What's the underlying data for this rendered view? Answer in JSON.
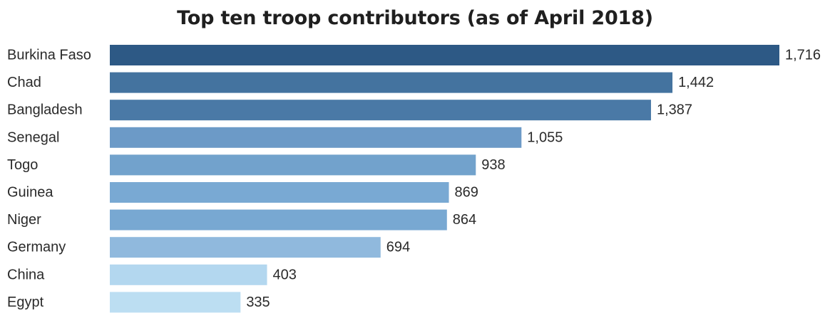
{
  "chart_data": {
    "type": "bar",
    "orientation": "horizontal",
    "title": "Top ten troop contributors (as of April 2018)",
    "xlabel": "",
    "ylabel": "",
    "categories": [
      "Burkina Faso",
      "Chad",
      "Bangladesh",
      "Senegal",
      "Togo",
      "Guinea",
      "Niger",
      "Germany",
      "China",
      "Egypt"
    ],
    "values": [
      1716,
      1442,
      1387,
      1055,
      938,
      869,
      864,
      694,
      403,
      335
    ],
    "value_labels": [
      "1,716",
      "1,442",
      "1,387",
      "1,055",
      "938",
      "869",
      "864",
      "694",
      "403",
      "335"
    ],
    "xlim": [
      0,
      1716
    ],
    "grid": false,
    "legend": "none",
    "colors": [
      "#2d5985",
      "#44739f",
      "#4a79a6",
      "#6c9ac7",
      "#72a2cc",
      "#79a9d3",
      "#78a8d2",
      "#90b9dd",
      "#b3d7ef",
      "#bcdef2"
    ]
  }
}
